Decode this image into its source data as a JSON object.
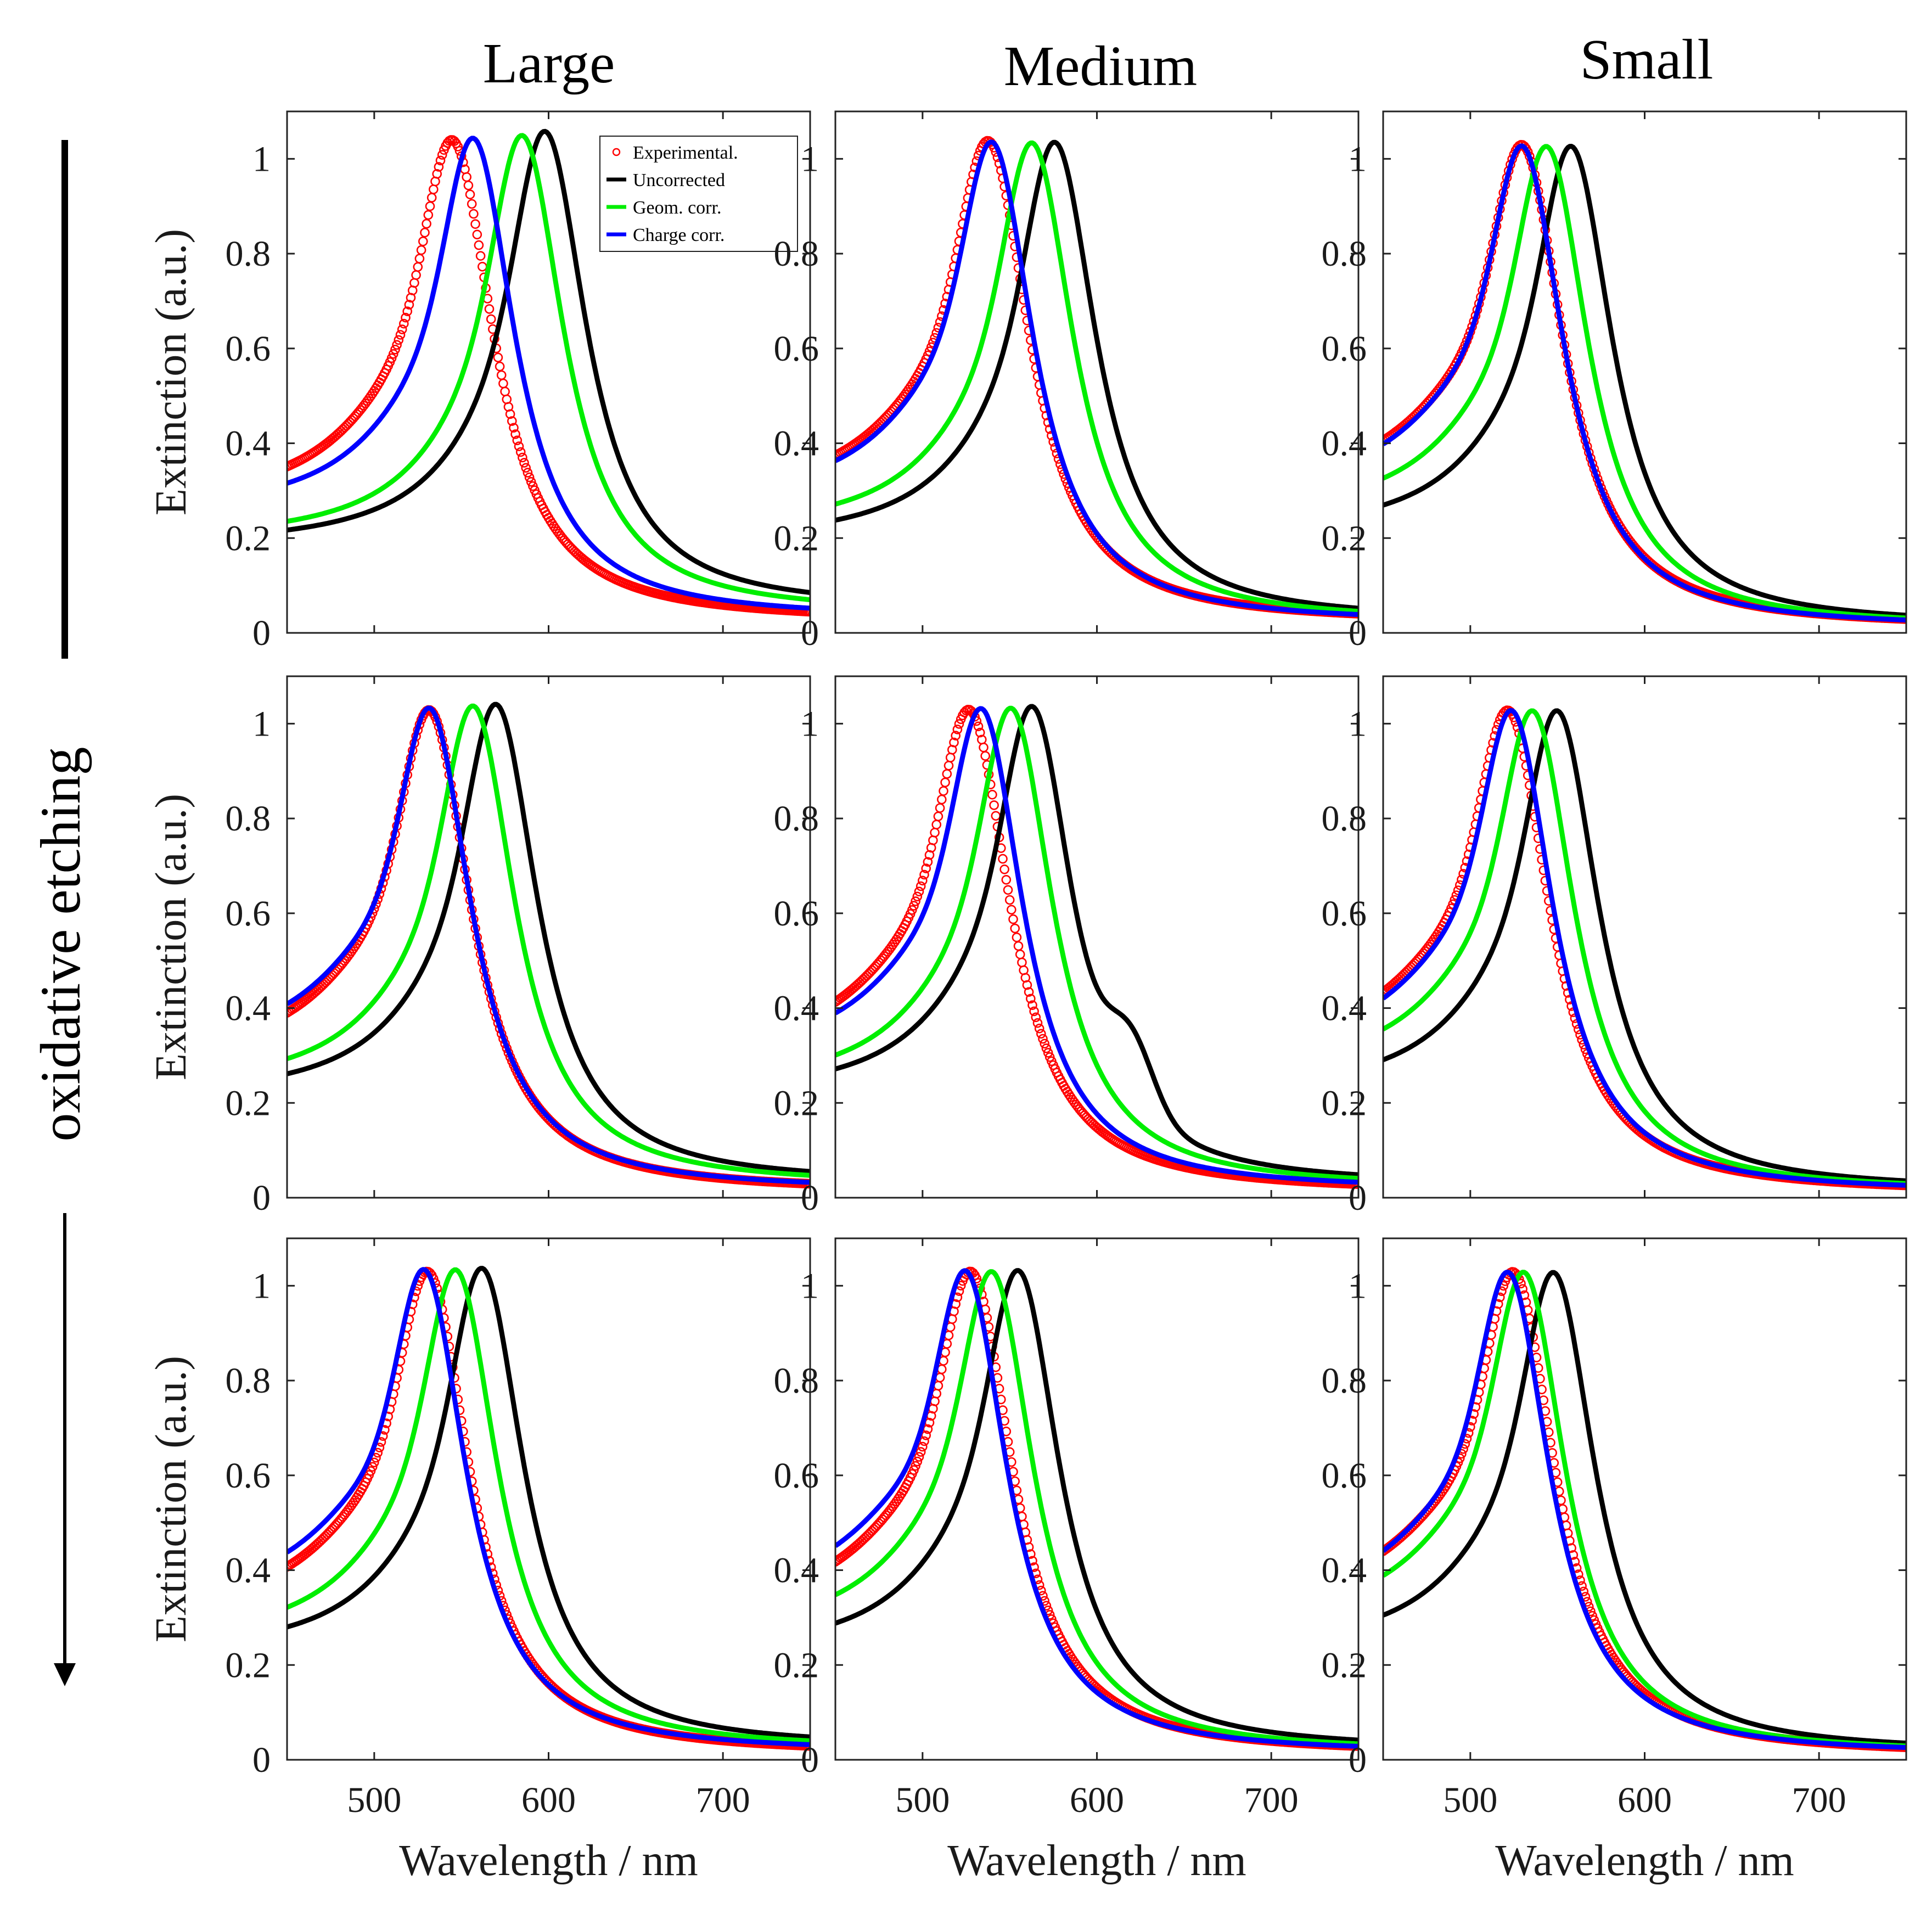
{
  "figure": {
    "column_titles": [
      "Large",
      "Medium",
      "Small"
    ],
    "side_label": "oxidative etching",
    "colors": {
      "experimental": "#ff0000",
      "uncorrected": "#000000",
      "geom": "#00ee00",
      "charge": "#0000ff"
    }
  },
  "chart_data": {
    "type": "line",
    "layout": "3x3 grid of panels",
    "xlabel": "Wavelength / nm",
    "ylabel": "Extinction (a.u.)",
    "xlim": [
      450,
      750
    ],
    "ylim": [
      0,
      1.1
    ],
    "xticks": [
      500,
      600,
      700
    ],
    "yticks": [
      0,
      0.2,
      0.4,
      0.6,
      0.8,
      1
    ],
    "legend": {
      "location": "top-right of first panel",
      "entries": [
        "Experimental.",
        "Uncorrected",
        "Geom. corr.",
        "Charge corr."
      ]
    },
    "series_style": {
      "Experimental.": "open circles",
      "Uncorrected": "line",
      "Geom. corr.": "line",
      "Charge corr.": "line"
    },
    "panels": [
      {
        "row": 1,
        "column": "Large",
        "series": [
          {
            "name": "Experimental.",
            "peak": 545,
            "start": 0.355,
            "end": 0.025
          },
          {
            "name": "Uncorrected",
            "peak": 598,
            "start": 0.24,
            "end": 0.05
          },
          {
            "name": "Geom. corr.",
            "peak": 585,
            "start": 0.255,
            "end": 0.04
          },
          {
            "name": "Charge corr.",
            "peak": 557,
            "start": 0.33,
            "end": 0.03
          }
        ]
      },
      {
        "row": 1,
        "column": "Medium",
        "series": [
          {
            "name": "Experimental.",
            "peak": 538,
            "start": 0.37,
            "end": 0.022
          },
          {
            "name": "Uncorrected",
            "peak": 576,
            "start": 0.25,
            "end": 0.025
          },
          {
            "name": "Geom. corr.",
            "peak": 563,
            "start": 0.28,
            "end": 0.022
          },
          {
            "name": "Charge corr.",
            "peak": 540,
            "start": 0.36,
            "end": 0.02
          }
        ]
      },
      {
        "row": 1,
        "column": "Small",
        "series": [
          {
            "name": "Experimental.",
            "peak": 530,
            "start": 0.39,
            "end": 0.012
          },
          {
            "name": "Uncorrected",
            "peak": 558,
            "start": 0.27,
            "end": 0.015
          },
          {
            "name": "Geom. corr.",
            "peak": 544,
            "start": 0.32,
            "end": 0.012
          },
          {
            "name": "Charge corr.",
            "peak": 530,
            "start": 0.38,
            "end": 0.01
          }
        ]
      },
      {
        "row": 2,
        "column": "Large",
        "series": [
          {
            "name": "Experimental.",
            "peak": 532,
            "start": 0.375,
            "end": 0.012
          },
          {
            "name": "Uncorrected",
            "peak": 570,
            "start": 0.275,
            "end": 0.03
          },
          {
            "name": "Geom. corr.",
            "peak": 557,
            "start": 0.3,
            "end": 0.025
          },
          {
            "name": "Charge corr.",
            "peak": 532,
            "start": 0.4,
            "end": 0.015
          }
        ]
      },
      {
        "row": 2,
        "column": "Medium",
        "series": [
          {
            "name": "Experimental.",
            "peak": 527,
            "start": 0.39,
            "end": 0.012
          },
          {
            "name": "Uncorrected",
            "peak": 563,
            "start": 0.28,
            "end": 0.025,
            "shoulder": {
              "x": 620,
              "y": 0.31
            }
          },
          {
            "name": "Geom. corr.",
            "peak": 551,
            "start": 0.3,
            "end": 0.02
          },
          {
            "name": "Charge corr.",
            "peak": 534,
            "start": 0.38,
            "end": 0.015
          }
        ]
      },
      {
        "row": 2,
        "column": "Small",
        "series": [
          {
            "name": "Experimental.",
            "peak": 522,
            "start": 0.4,
            "end": 0.01
          },
          {
            "name": "Uncorrected",
            "peak": 550,
            "start": 0.285,
            "end": 0.015
          },
          {
            "name": "Geom. corr.",
            "peak": 536,
            "start": 0.34,
            "end": 0.012
          },
          {
            "name": "Charge corr.",
            "peak": 524,
            "start": 0.39,
            "end": 0.01
          }
        ]
      },
      {
        "row": 3,
        "column": "Large",
        "series": [
          {
            "name": "Experimental.",
            "peak": 531,
            "start": 0.395,
            "end": 0.012
          },
          {
            "name": "Uncorrected",
            "peak": 562,
            "start": 0.29,
            "end": 0.025
          },
          {
            "name": "Geom. corr.",
            "peak": 547,
            "start": 0.32,
            "end": 0.02
          },
          {
            "name": "Charge corr.",
            "peak": 529,
            "start": 0.43,
            "end": 0.015
          }
        ]
      },
      {
        "row": 3,
        "column": "Medium",
        "series": [
          {
            "name": "Experimental.",
            "peak": 528,
            "start": 0.4,
            "end": 0.012
          },
          {
            "name": "Uncorrected",
            "peak": 555,
            "start": 0.29,
            "end": 0.02
          },
          {
            "name": "Geom. corr.",
            "peak": 540,
            "start": 0.34,
            "end": 0.015
          },
          {
            "name": "Charge corr.",
            "peak": 525,
            "start": 0.435,
            "end": 0.012
          }
        ]
      },
      {
        "row": 3,
        "column": "Small",
        "series": [
          {
            "name": "Experimental.",
            "peak": 525,
            "start": 0.42,
            "end": 0.01
          },
          {
            "name": "Uncorrected",
            "peak": 548,
            "start": 0.3,
            "end": 0.015
          },
          {
            "name": "Geom. corr.",
            "peak": 531,
            "start": 0.37,
            "end": 0.012
          },
          {
            "name": "Charge corr.",
            "peak": 522,
            "start": 0.41,
            "end": 0.01
          }
        ]
      }
    ]
  }
}
